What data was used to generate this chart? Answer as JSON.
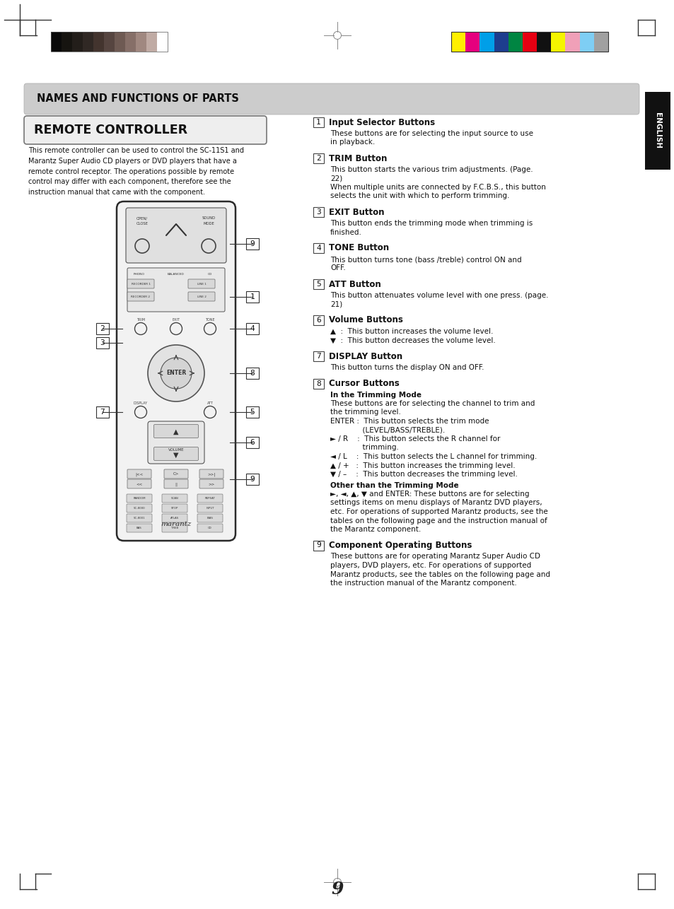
{
  "page_bg": "#ffffff",
  "header_text": "NAMES AND FUNCTIONS OF PARTS",
  "remote_title": "REMOTE CONTROLLER",
  "english_tab_text": "ENGLISH",
  "intro_text": "This remote controller can be used to control the SC-11S1 and\nMarantz Super Audio CD players or DVD players that have a\nremote control receptor. The operations possible by remote\ncontrol may differ with each component, therefore see the\ninstruction manual that came with the component.",
  "grayscale_colors": [
    "#0a0a0a",
    "#161410",
    "#231e1a",
    "#302824",
    "#43342e",
    "#564540",
    "#6e5a53",
    "#866f68",
    "#a08880",
    "#c0aba4",
    "#ffffff"
  ],
  "color_swatches": [
    "#ffef00",
    "#e6007e",
    "#009fe8",
    "#1d3d8e",
    "#008542",
    "#e60012",
    "#111111",
    "#f5f500",
    "#f0a0b8",
    "#7ecef4",
    "#a0a0a0"
  ],
  "page_number": "9",
  "section1_title": "Input Selector Buttons",
  "section1_body": "These buttons are for selecting the input source to use\nin playback.",
  "section2_title": "TRIM Button",
  "section2_body": "This button starts the various trim adjustments. (Page.\n22)\nWhen multiple units are connected by F.C.B.S., this button\nselects the unit with which to perform trimming.",
  "section3_title": "EXIT Button",
  "section3_body": "This button ends the trimming mode when trimming is\nfinished.",
  "section4_title": "TONE Button",
  "section4_body": "This button turns tone (bass /treble) control ON and\nOFF.",
  "section5_title": "ATT Button",
  "section5_body": "This button attenuates volume level with one press. (page.\n21)",
  "section6_title": "Volume Buttons",
  "section6_body": "▲  :  This button increases the volume level.\n▼  :  This button decreases the volume level.",
  "section7_title": "DISPLAY Button",
  "section7_body": "This button turns the display ON and OFF.",
  "section8_title": "Cursor Buttons",
  "section8_sub1": "In the Trimming Mode",
  "section8_body1": "These buttons are for selecting the channel to trim and\nthe trimming level.\nENTER :  This button selects the trim mode\n              (LEVEL/BASS/TREBLE).\n► / R    :  This button selects the R channel for\n              trimming.\n◄ / L    :  This button selects the L channel for trimming.\n▲ / +   :  This button increases the trimming level.\n▼ / –    :  This button decreases the trimming level.",
  "section8_sub2": "Other than the Trimming Mode",
  "section8_body2": "►, ◄, ▲, ▼ and ENTER: These buttons are for selecting\nsettings items on menu displays of Marantz DVD players,\netc. For operations of supported Marantz products, see the\ntables on the following page and the instruction manual of\nthe Marantz component.",
  "section9_title": "Component Operating Buttons",
  "section9_body": "These buttons are for operating Marantz Super Audio CD\nplayers, DVD players, etc. For operations of supported\nMarantz products, see the tables on the following page and\nthe instruction manual of the Marantz component."
}
